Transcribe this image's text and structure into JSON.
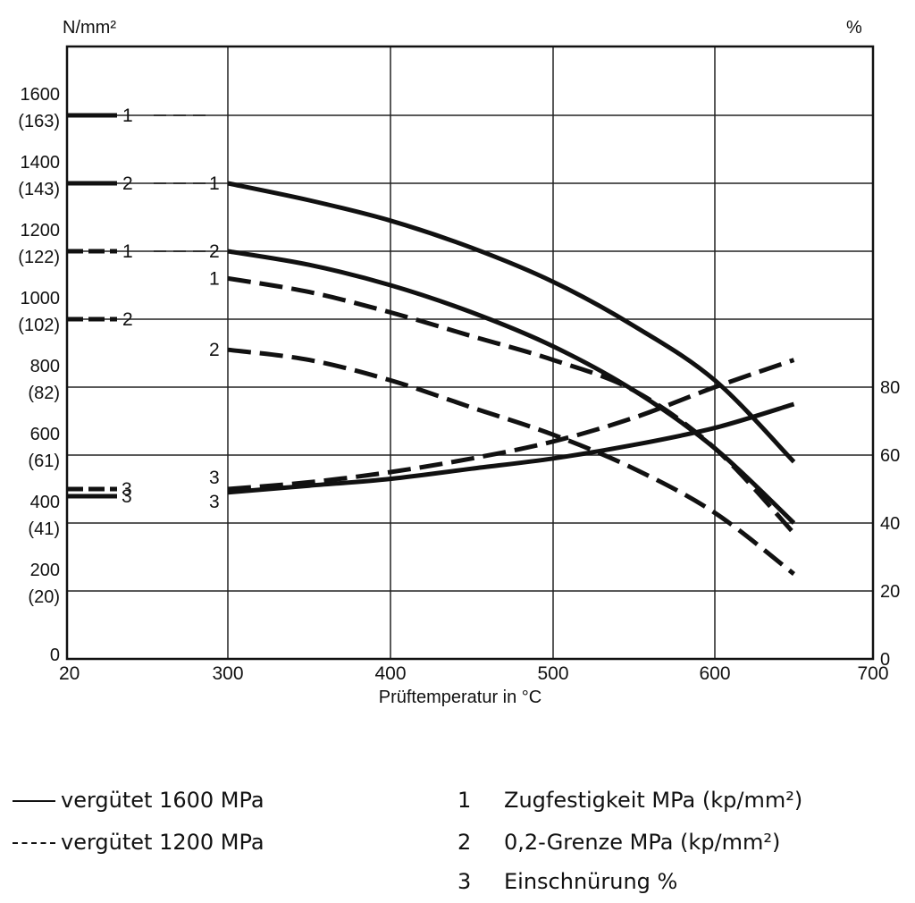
{
  "chart_data": {
    "type": "line",
    "xlabel": "Prüftemperatur in °C",
    "x_ticks": [
      "20",
      "300",
      "400",
      "500",
      "600",
      "700"
    ],
    "x_tick_values": [
      20,
      300,
      400,
      500,
      600,
      700
    ],
    "xlim": [
      20,
      700
    ],
    "ylabel_left": "N/mm²",
    "y_left_ticks": [
      {
        "value": 0,
        "label": "0",
        "sub": ""
      },
      {
        "value": 200,
        "label": "200",
        "sub": "(20)"
      },
      {
        "value": 400,
        "label": "400",
        "sub": "(41)"
      },
      {
        "value": 600,
        "label": "600",
        "sub": "(61)"
      },
      {
        "value": 800,
        "label": "800",
        "sub": "(82)"
      },
      {
        "value": 1000,
        "label": "1000",
        "sub": "(102)"
      },
      {
        "value": 1200,
        "label": "1200",
        "sub": "(122)"
      },
      {
        "value": 1400,
        "label": "1400",
        "sub": "(143)"
      },
      {
        "value": 1600,
        "label": "1600",
        "sub": "(163)"
      }
    ],
    "ylim_left": [
      0,
      1800
    ],
    "ylabel_right": "%",
    "y_right_ticks": [
      {
        "value": 0,
        "label": "0"
      },
      {
        "value": 20,
        "label": "20"
      },
      {
        "value": 40,
        "label": "40"
      },
      {
        "value": 60,
        "label": "60"
      },
      {
        "value": 80,
        "label": "80"
      }
    ],
    "ylim_right": [
      0,
      200
    ],
    "grid": true,
    "series": [
      {
        "label": "1",
        "style": "solid",
        "axis": "left",
        "x": [
          300,
          350,
          400,
          450,
          500,
          550,
          600,
          650
        ],
        "y": [
          1400,
          1350,
          1290,
          1210,
          1110,
          980,
          820,
          580
        ]
      },
      {
        "label": "2",
        "style": "solid",
        "axis": "left",
        "x": [
          300,
          350,
          400,
          450,
          500,
          550,
          600,
          650
        ],
        "y": [
          1200,
          1160,
          1100,
          1020,
          920,
          790,
          620,
          400
        ]
      },
      {
        "label": "1",
        "style": "dashed",
        "axis": "left",
        "x": [
          300,
          350,
          400,
          450,
          500,
          550,
          600,
          650
        ],
        "y": [
          1120,
          1080,
          1020,
          950,
          880,
          790,
          620,
          370
        ]
      },
      {
        "label": "2",
        "style": "dashed",
        "axis": "left",
        "x": [
          300,
          350,
          400,
          450,
          500,
          550,
          600,
          650
        ],
        "y": [
          910,
          880,
          820,
          740,
          660,
          560,
          430,
          250
        ]
      },
      {
        "label": "3",
        "style": "solid",
        "axis": "right",
        "x": [
          300,
          350,
          400,
          450,
          500,
          550,
          600,
          650
        ],
        "y": [
          49,
          51,
          53,
          56,
          59,
          63,
          68,
          75
        ]
      },
      {
        "label": "3",
        "style": "dashed",
        "axis": "right",
        "x": [
          300,
          350,
          400,
          450,
          500,
          550,
          600,
          650
        ],
        "y": [
          50,
          52,
          55,
          59,
          64,
          71,
          80,
          88
        ]
      }
    ],
    "start_markers": [
      {
        "label": "1",
        "style": "solid",
        "value": 1600
      },
      {
        "label": "2",
        "style": "solid",
        "value": 1400
      },
      {
        "label": "1",
        "style": "dashed",
        "value": 1200
      },
      {
        "label": "2",
        "style": "dashed",
        "value": 1000
      },
      {
        "label": "3",
        "style": "dashed",
        "value": 500
      },
      {
        "label": "3",
        "style": "solid",
        "value": 485
      }
    ]
  },
  "legend": {
    "line_styles": [
      {
        "style": "solid",
        "text": "vergütet 1600 MPa"
      },
      {
        "style": "dashed",
        "text": "vergütet 1200 MPa"
      }
    ],
    "numbers": [
      {
        "num": "1",
        "text": "Zugfestigkeit MPa (kp/mm²)"
      },
      {
        "num": "2",
        "text": "0,2-Grenze MPa (kp/mm²)"
      },
      {
        "num": "3",
        "text": "Einschnürung %"
      }
    ]
  }
}
